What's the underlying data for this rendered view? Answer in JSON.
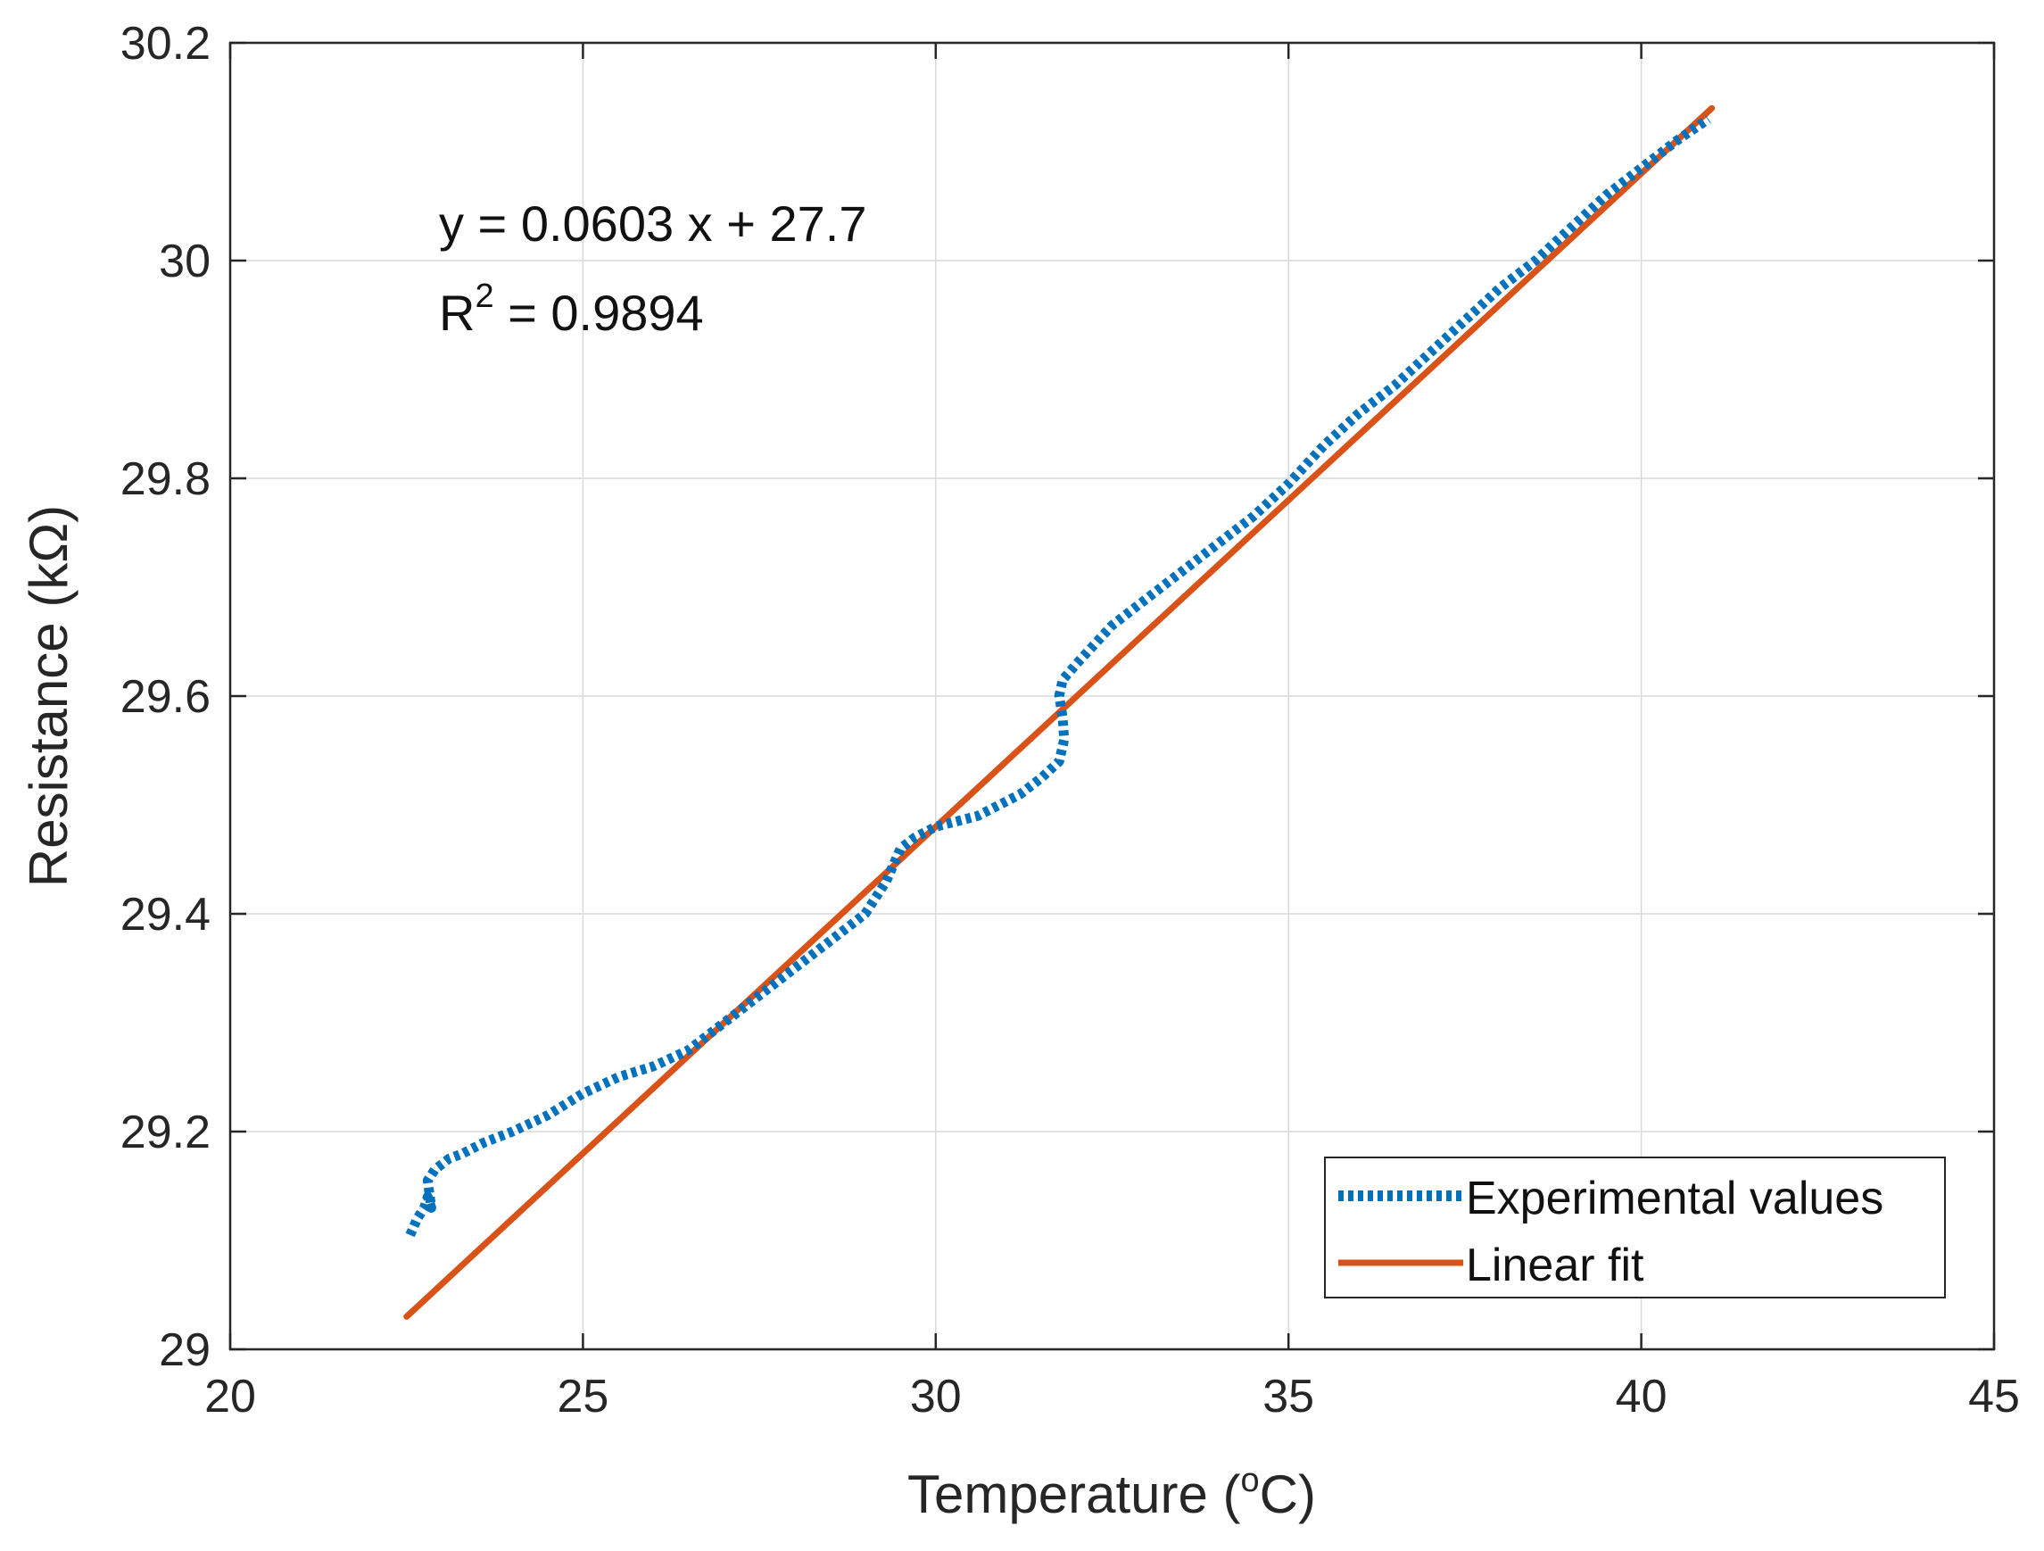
{
  "chart_data": {
    "type": "line",
    "title": "",
    "xlabel": "Temperature (",
    "xlabel_sup": "o",
    "xlabel_end": "C)",
    "ylabel": "Resistance (kΩ)",
    "xlim": [
      20,
      45
    ],
    "ylim": [
      29,
      30.2
    ],
    "xticks": [
      20,
      25,
      30,
      35,
      40,
      45
    ],
    "xtick_labels": [
      "20",
      "25",
      "30",
      "35",
      "40",
      "45"
    ],
    "yticks": [
      29,
      29.2,
      29.4,
      29.6,
      29.8,
      30,
      30.2
    ],
    "ytick_labels": [
      "29",
      "29.2",
      "29.4",
      "29.6",
      "29.8",
      "30",
      "30.2"
    ],
    "grid": true,
    "legend_position": "bottom-right",
    "annotations": {
      "equation": "y = 0.0603 x + 27.7",
      "r2_prefix": "R",
      "r2_sup": "2",
      "r2_value": " = 0.9894"
    },
    "series": [
      {
        "name": "Experimental values",
        "style": "dotted",
        "color": "#0072BD",
        "x": [
          22.55,
          22.65,
          22.75,
          22.8,
          22.85,
          22.8,
          22.9,
          23.0,
          23.1,
          23.3,
          23.6,
          24.0,
          24.5,
          25.0,
          25.5,
          26.0,
          26.5,
          27.0,
          27.5,
          28.0,
          28.5,
          29.0,
          29.3,
          29.5,
          29.7,
          30.0,
          30.3,
          30.6,
          30.9,
          31.2,
          31.5,
          31.75,
          31.82,
          31.8,
          31.75,
          31.8,
          32.0,
          32.5,
          33.0,
          33.5,
          34.0,
          34.5,
          35.0,
          35.5,
          36.0,
          36.5,
          37.0,
          37.5,
          38.0,
          38.5,
          39.0,
          39.5,
          40.0,
          40.5,
          40.95
        ],
        "y": [
          29.105,
          29.12,
          29.13,
          29.14,
          29.13,
          29.155,
          29.165,
          29.17,
          29.175,
          29.18,
          29.19,
          29.2,
          29.215,
          29.235,
          29.25,
          29.26,
          29.275,
          29.3,
          29.325,
          29.35,
          29.375,
          29.4,
          29.43,
          29.46,
          29.47,
          29.48,
          29.485,
          29.49,
          29.5,
          29.51,
          29.525,
          29.54,
          29.56,
          29.58,
          29.6,
          29.615,
          29.63,
          29.665,
          29.69,
          29.715,
          29.74,
          29.765,
          29.795,
          29.83,
          29.86,
          29.885,
          29.915,
          29.945,
          29.975,
          30.0,
          30.03,
          30.06,
          30.085,
          30.11,
          30.13
        ]
      },
      {
        "name": "Linear fit",
        "style": "solid",
        "color": "#D95319",
        "x": [
          22.5,
          41.0
        ],
        "y": [
          29.03,
          30.14
        ]
      }
    ]
  }
}
